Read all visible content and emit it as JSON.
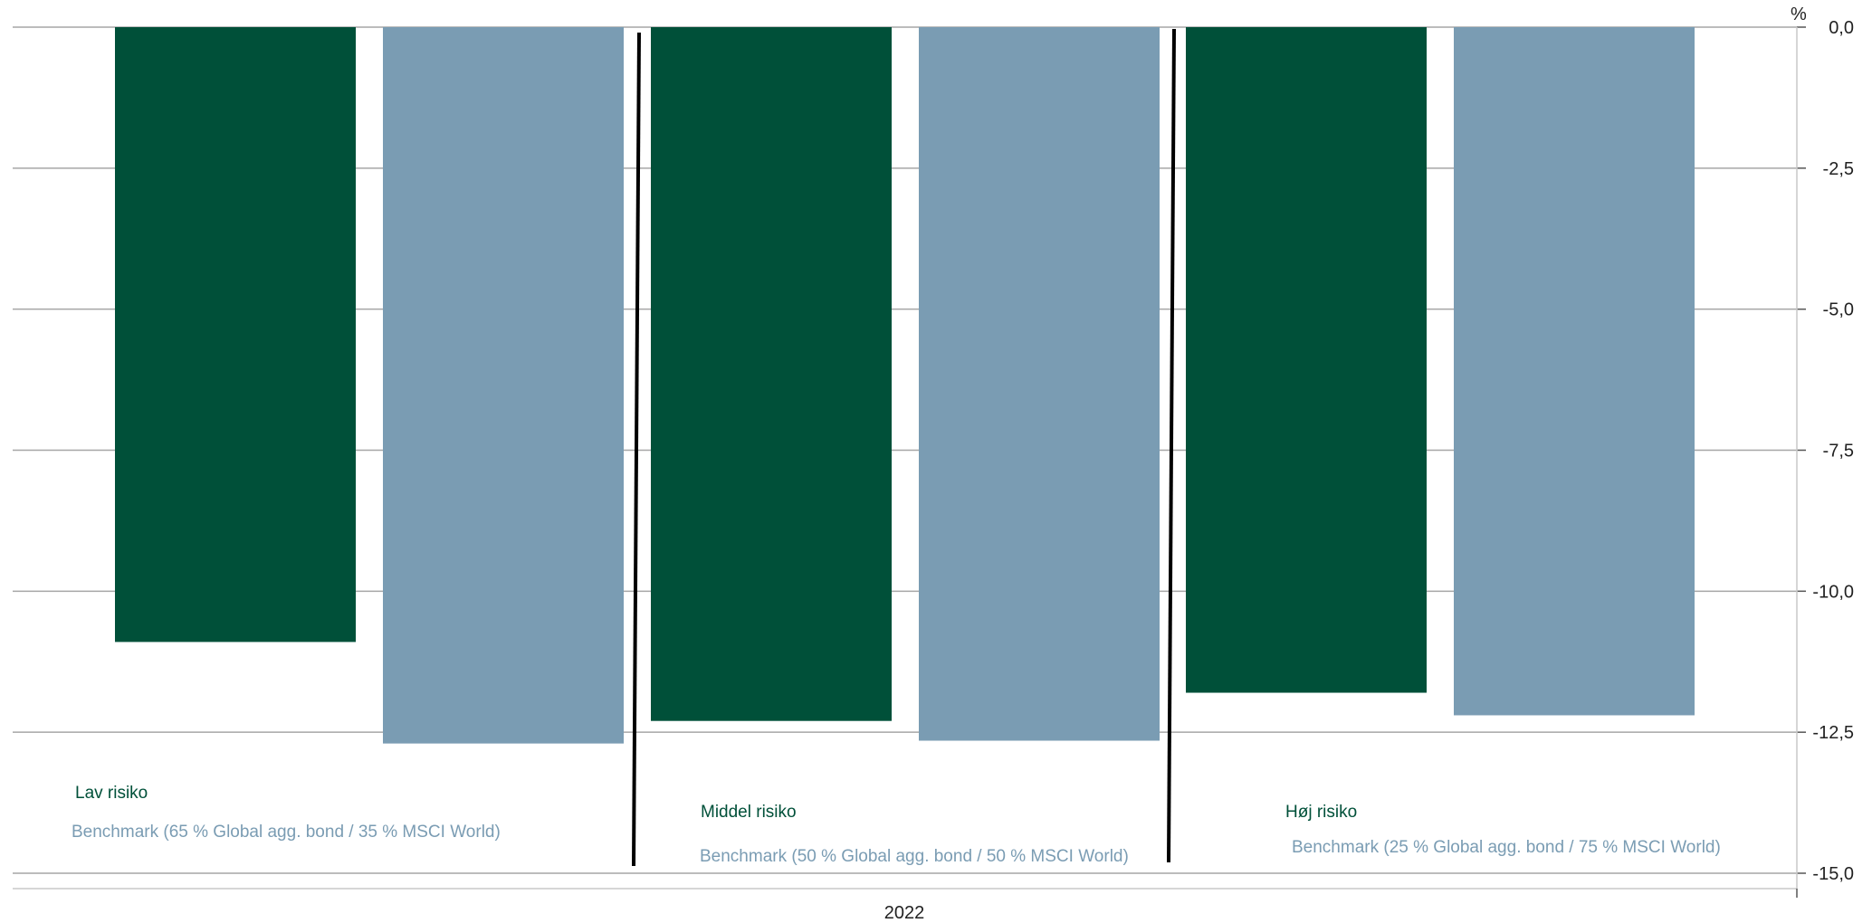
{
  "colors": {
    "portfolio": "#005039",
    "benchmark": "#7a9cb3",
    "grid": "#a6a6a6",
    "separator": "#000000",
    "axis": "#c8c8c8"
  },
  "chart_data": {
    "type": "bar",
    "unit": "%",
    "x_category": "2022",
    "ylim": [
      -15,
      0
    ],
    "y_ticks": [
      "0,0",
      "-2,5",
      "-5,0",
      "-7,5",
      "-10,0",
      "-12,5",
      "-15,0"
    ],
    "y_tick_values": [
      0,
      -2.5,
      -5,
      -7.5,
      -10,
      -12.5,
      -15
    ],
    "y_axis_position": "right",
    "grid": true,
    "groups": [
      {
        "risk_label": "Lav risiko",
        "benchmark_label": "Benchmark (65 % Global agg. bond / 35 % MSCI World)",
        "portfolio_value": -10.9,
        "benchmark_value": -12.7
      },
      {
        "risk_label": "Middel risiko",
        "benchmark_label": "Benchmark (50 % Global agg. bond / 50 % MSCI World)",
        "portfolio_value": -12.3,
        "benchmark_value": -12.65
      },
      {
        "risk_label": "Høj risiko",
        "benchmark_label": "Benchmark (25 % Global agg. bond / 75 % MSCI World)",
        "portfolio_value": -11.8,
        "benchmark_value": -12.2
      }
    ]
  }
}
